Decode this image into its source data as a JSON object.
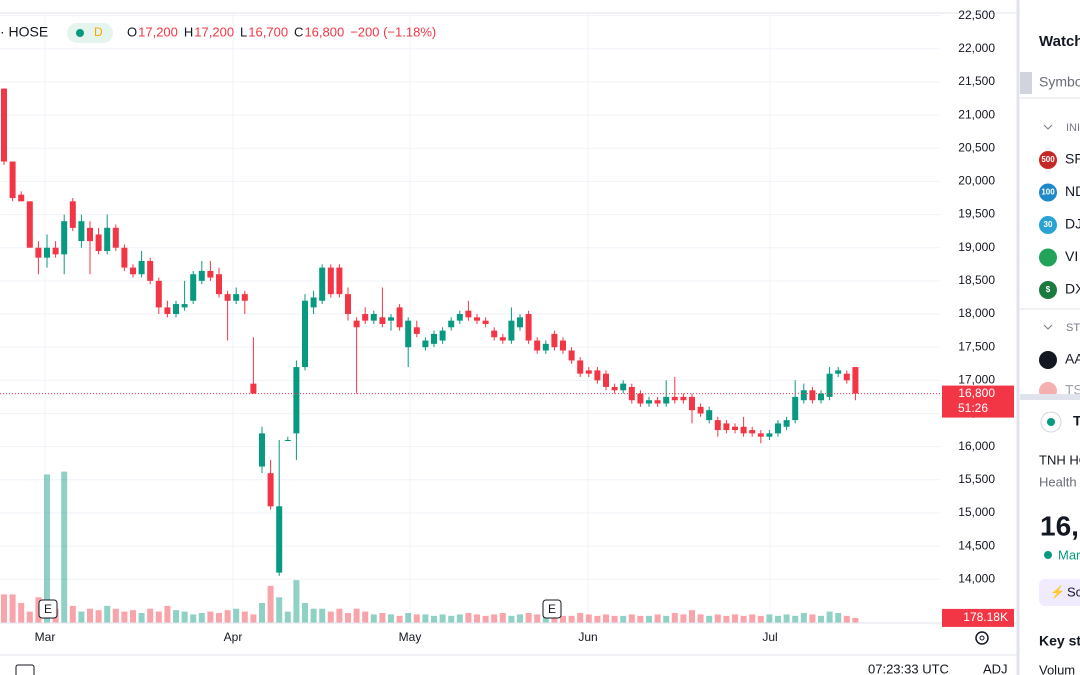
{
  "top": {
    "symbol": "· HOSE",
    "interval": "D",
    "ohlc": [
      {
        "key": "O",
        "value": "17,200"
      },
      {
        "key": "H",
        "value": "17,200"
      },
      {
        "key": "L",
        "value": "16,700"
      },
      {
        "key": "C",
        "value": "16,800"
      }
    ],
    "change": "−200 (−1.18%)"
  },
  "chart_data": {
    "type": "candlestick",
    "up_color": "#089981",
    "down_color": "#f23645",
    "grid": true,
    "open": [
      21400,
      20300,
      19800,
      19700,
      19000,
      18850,
      19000,
      18900,
      19700,
      19100,
      19300,
      19200,
      18950,
      19300,
      19000,
      18700,
      18600,
      18800,
      18500,
      18100,
      18000,
      18100,
      18200,
      18500,
      18650,
      18600,
      18300,
      18200,
      18300,
      16950,
      15700,
      15600,
      14100,
      16100,
      16200,
      17200,
      18100,
      18200,
      18700,
      18700,
      18300,
      17900,
      18000,
      17900,
      17950,
      17900,
      18100,
      17500,
      17800,
      17500,
      17550,
      17600,
      17800,
      17900,
      18050,
      17950,
      17900,
      17750,
      17650,
      17600,
      17800,
      18000,
      17600,
      17450,
      17700,
      17600,
      17450,
      17300,
      17150,
      17150,
      17100,
      16900,
      16850,
      16900,
      16800,
      16650,
      16700,
      16650,
      16750,
      16750,
      16750,
      16600,
      16400,
      16400,
      16350,
      16300,
      16300,
      16250,
      16200,
      16150,
      16200,
      16300,
      16400,
      16700,
      16850,
      16700,
      16750,
      17100,
      17100,
      17200
    ],
    "high": [
      21400,
      20300,
      19850,
      19700,
      19100,
      19200,
      19100,
      19500,
      19750,
      19500,
      19400,
      19300,
      19500,
      19350,
      19050,
      18750,
      18950,
      18850,
      18550,
      18200,
      18200,
      18500,
      18650,
      18800,
      18800,
      18700,
      18350,
      18400,
      18350,
      17650,
      16300,
      15800,
      16100,
      16150,
      17300,
      18300,
      18350,
      18750,
      18750,
      18750,
      18400,
      17950,
      18100,
      18050,
      18400,
      18000,
      18150,
      17950,
      17900,
      17650,
      17750,
      17800,
      17950,
      18050,
      18200,
      18000,
      17950,
      17800,
      17700,
      18100,
      18000,
      18050,
      17650,
      17600,
      17750,
      17650,
      17500,
      17350,
      17200,
      17200,
      17150,
      16950,
      17000,
      16950,
      16850,
      16750,
      16750,
      17000,
      17050,
      16800,
      16800,
      16650,
      16600,
      16450,
      16400,
      16350,
      16450,
      16300,
      16250,
      16250,
      16400,
      16450,
      17000,
      16950,
      16900,
      16850,
      17200,
      17200,
      17150,
      17200
    ],
    "low": [
      20250,
      19700,
      19700,
      19000,
      18600,
      18700,
      18850,
      18600,
      19250,
      19000,
      18600,
      18900,
      18900,
      18950,
      18650,
      18550,
      18550,
      18450,
      18000,
      17950,
      17950,
      18050,
      18150,
      18450,
      18500,
      18250,
      17600,
      18150,
      18000,
      16800,
      15600,
      15050,
      14050,
      16100,
      15800,
      17150,
      18000,
      18150,
      18250,
      18250,
      17900,
      16800,
      17850,
      17850,
      17800,
      17750,
      17750,
      17200,
      17650,
      17450,
      17500,
      17550,
      17750,
      17850,
      17900,
      17850,
      17800,
      17600,
      17550,
      17550,
      17750,
      17550,
      17400,
      17400,
      17450,
      17400,
      17250,
      17050,
      17050,
      16950,
      16850,
      16800,
      16800,
      16650,
      16600,
      16600,
      16600,
      16600,
      16650,
      16650,
      16350,
      16450,
      16350,
      16150,
      16200,
      16200,
      16150,
      16150,
      16050,
      16100,
      16150,
      16250,
      16350,
      16650,
      16650,
      16650,
      16700,
      17050,
      16950,
      16700
    ],
    "close": [
      20300,
      19750,
      19700,
      19000,
      18850,
      19000,
      18900,
      19400,
      19300,
      19400,
      19100,
      18950,
      19300,
      19000,
      18700,
      18600,
      18800,
      18500,
      18100,
      18000,
      18150,
      18150,
      18600,
      18650,
      18550,
      18300,
      18200,
      18300,
      18200,
      16800,
      16200,
      15100,
      15100,
      16100,
      17200,
      18200,
      18250,
      18700,
      18300,
      18300,
      18000,
      17800,
      17900,
      18000,
      17850,
      17950,
      17800,
      17900,
      17700,
      17600,
      17700,
      17750,
      17900,
      18000,
      17950,
      17900,
      17850,
      17650,
      17600,
      17900,
      17950,
      17600,
      17450,
      17550,
      17500,
      17450,
      17300,
      17100,
      17100,
      17000,
      16900,
      16850,
      16950,
      16700,
      16650,
      16700,
      16650,
      16750,
      16700,
      16700,
      16550,
      16500,
      16550,
      16250,
      16250,
      16250,
      16200,
      16200,
      16150,
      16200,
      16350,
      16400,
      16750,
      16850,
      16700,
      16800,
      17100,
      17150,
      17000,
      16800
    ],
    "volume": [
      1000,
      1000,
      700,
      400,
      900,
      5200,
      500,
      5300,
      600,
      400,
      500,
      450,
      600,
      500,
      400,
      450,
      350,
      500,
      400,
      600,
      450,
      400,
      300,
      350,
      400,
      350,
      450,
      500,
      400,
      300,
      700,
      1300,
      900,
      400,
      1500,
      700,
      500,
      500,
      400,
      500,
      350,
      500,
      400,
      300,
      350,
      300,
      250,
      350,
      300,
      300,
      250,
      300,
      250,
      300,
      350,
      300,
      250,
      300,
      350,
      250,
      300,
      350,
      300,
      250,
      300,
      250,
      250,
      350,
      300,
      250,
      300,
      250,
      250,
      300,
      250,
      250,
      300,
      250,
      350,
      300,
      450,
      300,
      250,
      300,
      250,
      300,
      250,
      300,
      250,
      300,
      250,
      300,
      250,
      350,
      300,
      250,
      400,
      350,
      250,
      178.18
    ],
    "volume_label": "178.18K",
    "ylim": [
      13340,
      22540
    ],
    "yticks": [
      {
        "value": 14000,
        "label": "14,000"
      },
      {
        "value": 14500,
        "label": "14,500"
      },
      {
        "value": 15000,
        "label": "15,000"
      },
      {
        "value": 15500,
        "label": "15,500"
      },
      {
        "value": 16000,
        "label": "16,000"
      },
      {
        "value": 16500,
        "label": "16,500"
      },
      {
        "value": 17000,
        "label": "17,000"
      },
      {
        "value": 17500,
        "label": "17,500"
      },
      {
        "value": 18000,
        "label": "18,000"
      },
      {
        "value": 18500,
        "label": "18,500"
      },
      {
        "value": 19000,
        "label": "19,000"
      },
      {
        "value": 19500,
        "label": "19,500"
      },
      {
        "value": 20000,
        "label": "20,000"
      },
      {
        "value": 20500,
        "label": "20,500"
      },
      {
        "value": 21000,
        "label": "21,000"
      },
      {
        "value": 21500,
        "label": "21,500"
      },
      {
        "value": 22000,
        "label": "22,000"
      },
      {
        "value": 22500,
        "label": "22,500"
      }
    ],
    "months": [
      "Mar",
      "Apr",
      "May",
      "Jun",
      "Jul"
    ],
    "events": [
      "E",
      "E"
    ],
    "last_price": {
      "value": 16800,
      "label": "16,800"
    },
    "countdown": "51:26"
  },
  "sidebar": {
    "title": "Watch",
    "search": "Symbo",
    "group1": "INI",
    "rows1": [
      {
        "icon": "500",
        "symbol": "SP"
      },
      {
        "icon": "100",
        "symbol": "ND"
      },
      {
        "icon": "30",
        "symbol": "DJ"
      },
      {
        "icon": "",
        "symbol": "VI"
      },
      {
        "icon": "$",
        "symbol": "DX"
      }
    ],
    "group2": "STO",
    "rows2": [
      {
        "symbol": "AA"
      },
      {
        "symbol": "TS"
      }
    ],
    "detail": {
      "symbol": "T",
      "name": "TNH HO",
      "sector": "Health",
      "price": "16,",
      "status": "Mar",
      "button": "Sc",
      "section": "Key st",
      "field": "Volum"
    }
  },
  "status": {
    "time": "07:23:33 UTC",
    "adj": "ADJ"
  }
}
